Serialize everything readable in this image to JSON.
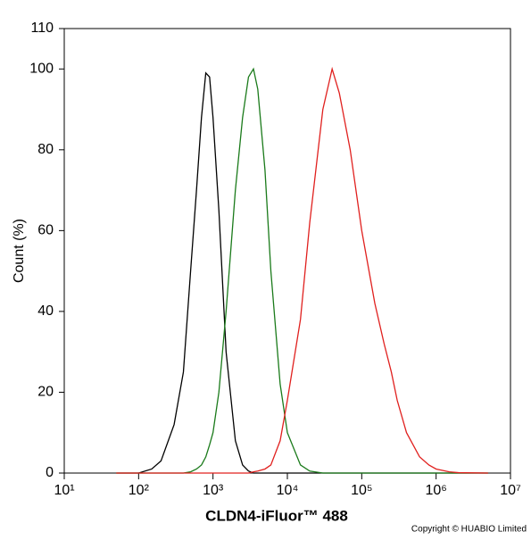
{
  "chart_data": {
    "type": "line",
    "y_label": "Count  (%)",
    "x_label": "CLDN4-iFluor™ 488",
    "footer": "Copyright © HUABIO Limited",
    "log_x": true,
    "x": [
      50,
      100,
      150,
      200,
      300,
      400,
      500,
      600,
      700,
      800,
      900,
      1000,
      1200,
      1500,
      2000,
      2500,
      3000,
      3500,
      4000,
      5000,
      6000,
      8000,
      10000,
      15000,
      20000,
      30000,
      40000,
      50000,
      70000,
      100000,
      150000,
      200000,
      250000,
      300000,
      400000,
      600000,
      800000,
      1000000,
      1500000,
      2000000,
      5000000
    ],
    "series": [
      {
        "color": "#000000",
        "values": [
          0,
          0,
          1,
          3,
          12,
          25,
          50,
          70,
          88,
          99,
          98,
          88,
          65,
          30,
          8,
          2,
          0.5,
          0,
          0,
          0,
          0,
          0,
          0,
          0,
          0,
          0,
          0,
          0,
          0,
          0,
          0,
          0,
          0,
          0,
          0,
          0,
          0,
          0,
          0,
          0,
          0
        ]
      },
      {
        "color": "#1a7a1a",
        "values": [
          0,
          0,
          0,
          0,
          0,
          0,
          0.3,
          1,
          2,
          4,
          7,
          10,
          20,
          40,
          70,
          88,
          98,
          100,
          95,
          75,
          50,
          22,
          10,
          2,
          0.5,
          0,
          0,
          0,
          0,
          0,
          0,
          0,
          0,
          0,
          0,
          0,
          0,
          0,
          0,
          0,
          0
        ]
      },
      {
        "color": "#e0201e",
        "values": [
          0,
          0,
          0,
          0,
          0,
          0,
          0,
          0,
          0,
          0,
          0,
          0,
          0,
          0,
          0,
          0,
          0,
          0.3,
          0.5,
          1,
          2,
          8,
          18,
          38,
          62,
          90,
          100,
          94,
          80,
          60,
          42,
          32,
          25,
          18,
          10,
          4,
          2,
          1,
          0.3,
          0.1,
          0
        ]
      }
    ],
    "xlim": [
      10,
      10000000
    ],
    "xticks": [
      {
        "value": 10,
        "label": "10¹"
      },
      {
        "value": 100,
        "label": "10²"
      },
      {
        "value": 1000,
        "label": "10³"
      },
      {
        "value": 10000,
        "label": "10⁴"
      },
      {
        "value": 100000,
        "label": "10⁵"
      },
      {
        "value": 1000000,
        "label": "10⁶"
      },
      {
        "value": 10000000,
        "label": "10⁷"
      }
    ],
    "ylim": [
      0,
      110
    ],
    "yticks": [
      0,
      20,
      40,
      60,
      80,
      100,
      110
    ]
  }
}
